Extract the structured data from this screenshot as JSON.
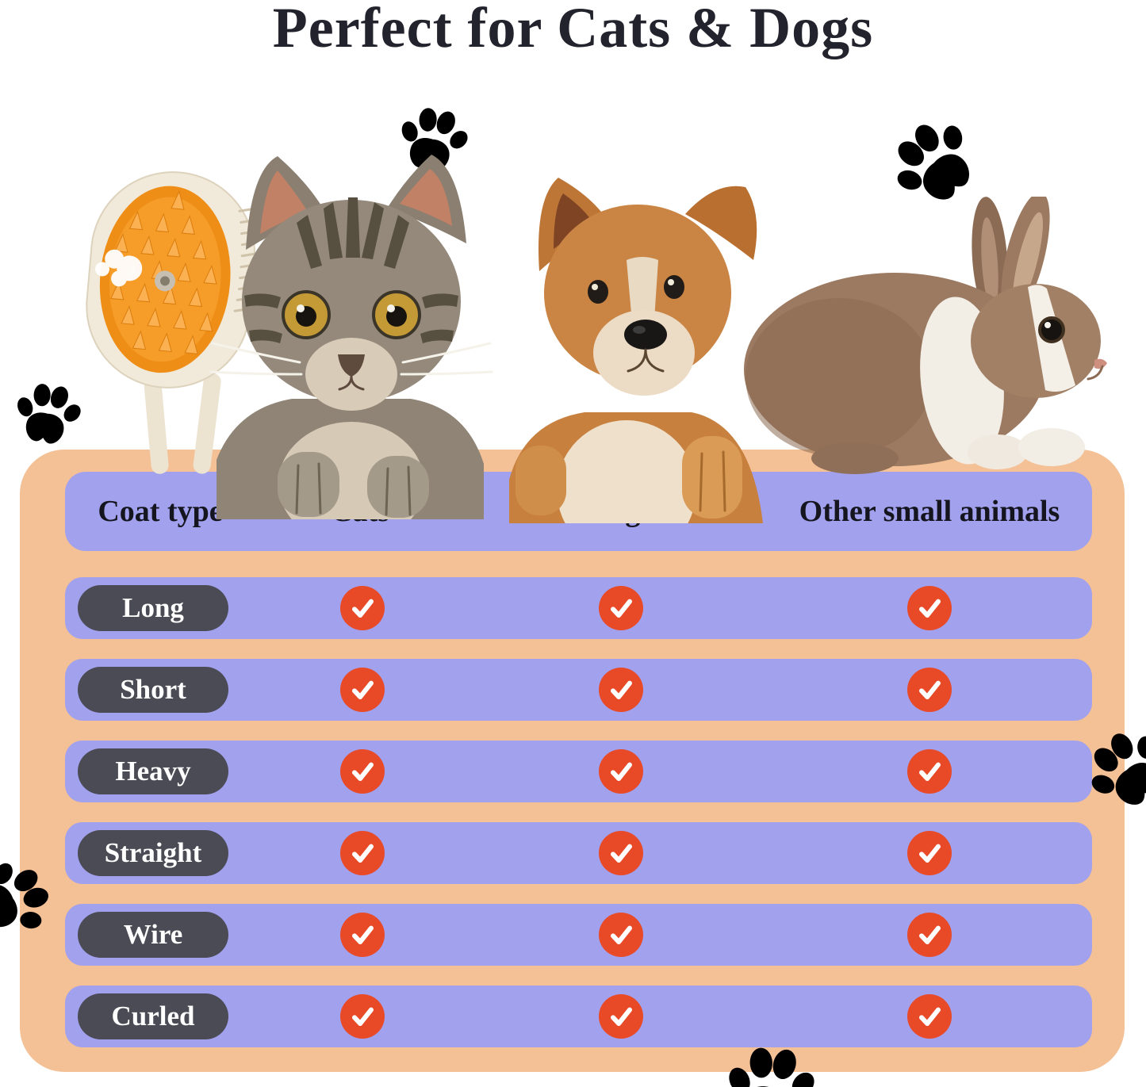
{
  "title": "Perfect for Cats & Dogs",
  "table": {
    "columns": [
      "Coat type",
      "Cats",
      "Dogs",
      "Other small animals"
    ],
    "rows": [
      {
        "label": "Long",
        "cats": true,
        "dogs": true,
        "other": true
      },
      {
        "label": "Short",
        "cats": true,
        "dogs": true,
        "other": true
      },
      {
        "label": "Heavy",
        "cats": true,
        "dogs": true,
        "other": true
      },
      {
        "label": "Straight",
        "cats": true,
        "dogs": true,
        "other": true
      },
      {
        "label": "Wire",
        "cats": true,
        "dogs": true,
        "other": true
      },
      {
        "label": "Curled",
        "cats": true,
        "dogs": true,
        "other": true
      }
    ]
  },
  "icons": {
    "checkmark": "✓",
    "paw_print": "paw-print"
  },
  "illustrations": [
    "steam-brush",
    "cat",
    "dog",
    "rabbit"
  ],
  "colors": {
    "panel_peach": "#f4c095",
    "row_purple": "#a1a1ee",
    "pill_dark": "#4b4b55",
    "check_red": "#e84a28",
    "paw_gray": "#a2a2a2",
    "title_text": "#23232d",
    "brush_bristles": "#ee8e17"
  },
  "chart_data": {
    "type": "table",
    "title": "Perfect for Cats & Dogs",
    "columns": [
      "Coat type",
      "Cats",
      "Dogs",
      "Other small animals"
    ],
    "rows": [
      [
        "Long",
        "✓",
        "✓",
        "✓"
      ],
      [
        "Short",
        "✓",
        "✓",
        "✓"
      ],
      [
        "Heavy",
        "✓",
        "✓",
        "✓"
      ],
      [
        "Straight",
        "✓",
        "✓",
        "✓"
      ],
      [
        "Wire",
        "✓",
        "✓",
        "✓"
      ],
      [
        "Curled",
        "✓",
        "✓",
        "✓"
      ]
    ]
  }
}
